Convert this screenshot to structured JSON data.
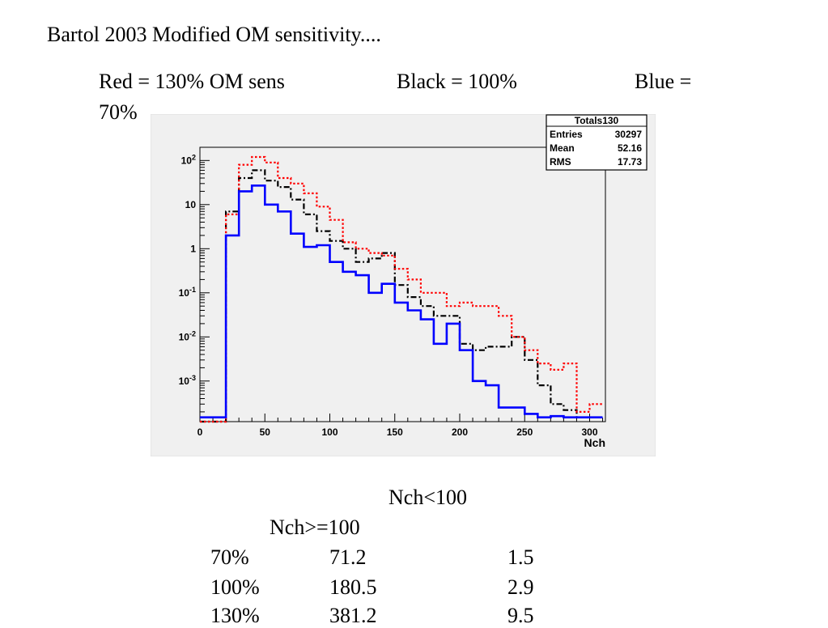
{
  "slide": {
    "title": "Bartol 2003 Modified OM sensitivity....",
    "legend_red": "Red = 130% OM sens",
    "legend_black": "Black = 100%",
    "legend_blue": "Blue =",
    "legend_blue_value": "70%"
  },
  "table": {
    "header_lt": "Nch<100",
    "header_ge": "Nch>=100",
    "rows": [
      {
        "label": "70%",
        "lt": "71.2",
        "ge": "1.5"
      },
      {
        "label": "100%",
        "lt": "180.5",
        "ge": "2.9"
      },
      {
        "label": "130%",
        "lt": "381.2",
        "ge": "9.5"
      }
    ]
  },
  "colors": {
    "red": "#ff0000",
    "black": "#000000",
    "blue": "#0000ff",
    "plot_bg": "#f0f0f0"
  },
  "chart_data": {
    "type": "histogram",
    "xlabel": "Nch",
    "yscale": "log",
    "xlim": [
      0,
      310
    ],
    "ylim": [
      0.00012,
      300
    ],
    "x_ticks": [
      0,
      50,
      100,
      150,
      200,
      250,
      300
    ],
    "y_ticks": [
      {
        "value": 100,
        "base": "10",
        "exp": "2"
      },
      {
        "value": 10,
        "base": "10",
        "exp": ""
      },
      {
        "value": 1,
        "base": "1",
        "exp": ""
      },
      {
        "value": 0.1,
        "base": "10",
        "exp": "-1"
      },
      {
        "value": 0.01,
        "base": "10",
        "exp": "-2"
      },
      {
        "value": 0.001,
        "base": "10",
        "exp": "-3"
      }
    ],
    "stats_box": {
      "title": "Totals130",
      "rows": [
        {
          "label": "Entries",
          "value": "30297"
        },
        {
          "label": "Mean",
          "value": "52.16"
        },
        {
          "label": "RMS",
          "value": "17.73"
        }
      ]
    },
    "bin_edges": [
      0,
      10,
      20,
      30,
      40,
      50,
      60,
      70,
      80,
      90,
      100,
      110,
      120,
      130,
      140,
      150,
      160,
      170,
      180,
      190,
      200,
      210,
      220,
      230,
      240,
      250,
      260,
      270,
      280,
      290,
      300,
      310
    ],
    "series": [
      {
        "color": "red",
        "style": "dotted",
        "values": [
          0,
          0,
          6,
          80,
          120,
          90,
          40,
          30,
          18,
          9,
          4.5,
          1.4,
          1,
          0.8,
          0.7,
          0.35,
          0.2,
          0.1,
          0.1,
          0.05,
          0.06,
          0.05,
          0.05,
          0.03,
          0.01,
          0.005,
          0.0025,
          0.0018,
          0.0025,
          0.0002,
          0.0003
        ]
      },
      {
        "color": "black",
        "style": "dashdot",
        "values": [
          0,
          0,
          7,
          40,
          60,
          35,
          25,
          13,
          6,
          2.5,
          1.5,
          1,
          0.5,
          0.6,
          0.8,
          0.15,
          0.08,
          0.05,
          0.03,
          0.03,
          0.007,
          0.005,
          0.006,
          0.006,
          0.01,
          0.003,
          0.0008,
          0.0003,
          0.00022,
          0.00015,
          0.00015
        ]
      },
      {
        "color": "blue",
        "style": "solid",
        "values": [
          0.00015,
          0.00015,
          2,
          20,
          27,
          10,
          7,
          2.2,
          1.1,
          1.2,
          0.5,
          0.3,
          0.25,
          0.1,
          0.16,
          0.06,
          0.04,
          0.025,
          0.007,
          0.02,
          0.005,
          0.001,
          0.0008,
          0.00025,
          0.00025,
          0.00018,
          0.00015,
          0.00016,
          0.00015,
          0.00015,
          0.00015
        ]
      }
    ]
  }
}
